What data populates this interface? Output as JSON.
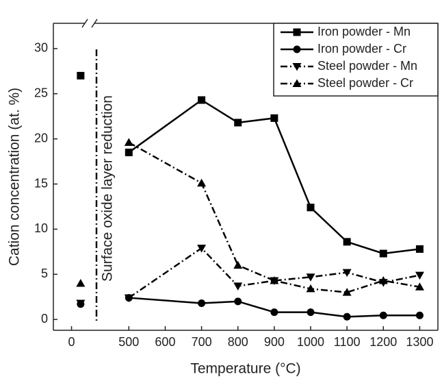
{
  "chart_data": {
    "type": "line",
    "xlabel": "Temperature (°C)",
    "ylabel": "Cation concentration (at. %)",
    "annotation": "Surface oxide layer reduction",
    "x": [
      25,
      500,
      700,
      800,
      900,
      1000,
      1100,
      1200,
      1300
    ],
    "series": [
      {
        "name": "Iron powder - Mn",
        "color": "#000000",
        "dash": "solid",
        "marker": "square",
        "values": [
          27.0,
          18.5,
          24.3,
          21.8,
          22.3,
          12.4,
          8.6,
          7.3,
          7.8
        ]
      },
      {
        "name": "Iron powder - Cr",
        "color": "#000000",
        "dash": "solid",
        "marker": "circle",
        "values": [
          1.7,
          2.4,
          1.8,
          2.0,
          0.8,
          0.8,
          0.3,
          0.45,
          0.45
        ]
      },
      {
        "name": "Steel powder - Mn",
        "color": "#000000",
        "dash": "dashdot",
        "marker": "triangle-down",
        "values": [
          1.8,
          2.4,
          7.9,
          3.7,
          4.3,
          4.7,
          5.2,
          4.1,
          4.9
        ]
      },
      {
        "name": "Steel powder - Cr",
        "color": "#000000",
        "dash": "dashdot",
        "marker": "triangle-up",
        "values": [
          4.0,
          19.6,
          15.1,
          6.0,
          4.3,
          3.4,
          3.0,
          4.3,
          3.6
        ]
      }
    ],
    "xlim": [
      -50,
      1350
    ],
    "xbreak": [
      60,
      425
    ],
    "xticks": [
      0,
      500,
      600,
      700,
      800,
      900,
      1000,
      1100,
      1200,
      1300
    ],
    "ylim": [
      -1.2,
      32.8
    ],
    "yticks": [
      0,
      5,
      10,
      15,
      20,
      25,
      30
    ],
    "legend": "upper right"
  }
}
